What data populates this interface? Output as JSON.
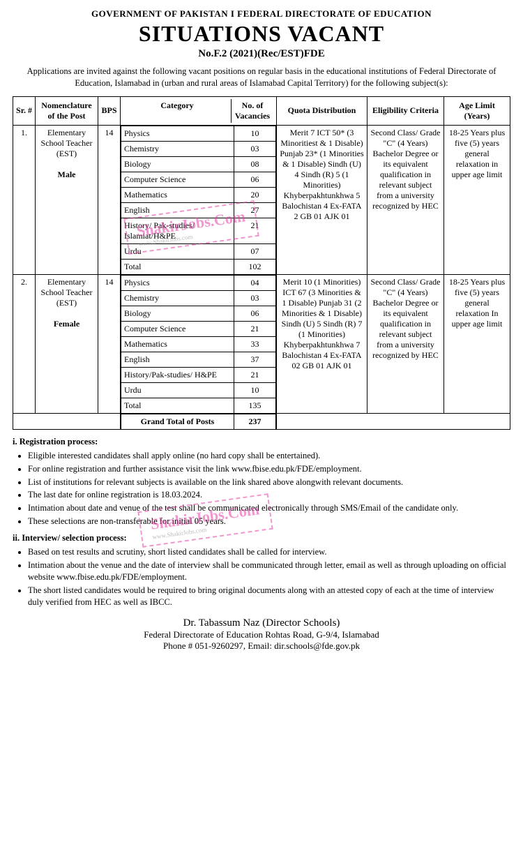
{
  "header": {
    "org": "GOVERNMENT OF PAKISTAN I FEDERAL DIRECTORATE OF EDUCATION",
    "title": "SITUATIONS VACANT",
    "ref": "No.F.2 (2021)(Rec/EST)FDE"
  },
  "intro": "Applications are invited against the following vacant positions on regular basis in the educational institutions of Federal Directorate of Education, Islamabad in (urban and rural areas of Islamabad Capital Territory) for the following subject(s):",
  "columns": [
    "Sr. #",
    "Nomenclature of the Post",
    "BPS",
    "Category",
    "No. of Vacancies",
    "Quota Distribution",
    "Eligibility Criteria",
    "Age Limit (Years)"
  ],
  "posts": [
    {
      "sr": "1.",
      "name": "Elementary School Teacher (EST)",
      "gender": "Male",
      "bps": "14",
      "rows": [
        {
          "cat": "Physics",
          "n": "10"
        },
        {
          "cat": "Chemistry",
          "n": "03"
        },
        {
          "cat": "Biology",
          "n": "08"
        },
        {
          "cat": "Computer Science",
          "n": "06"
        },
        {
          "cat": "Mathematics",
          "n": "20"
        },
        {
          "cat": "English",
          "n": "27"
        },
        {
          "cat": "History/ Pak-studies/ Islamiat/H&PE",
          "n": "21"
        },
        {
          "cat": "Urdu",
          "n": "07"
        },
        {
          "cat": "Total",
          "n": "102"
        }
      ],
      "quota": "Merit 7 ICT 50* (3 Minoritiest & 1 Disable) Punjab 23* (1 Minorities & 1 Disable) Sindh (U) 4 Sindh (R) 5 (1 Minorities) Khyberpakhtunkhwa 5 Balochistan 4 Ex-FATA 2 GB 01 AJK 01",
      "elig": "Second Class/ Grade \"C\" (4 Years) Bachelor Degree or its equivalent qualification in relevant subject from a university recognized by HEC",
      "age": "18-25 Years plus five (5) years general relaxation in upper age limit"
    },
    {
      "sr": "2.",
      "name": "Elementary School Teacher (EST)",
      "gender": "Female",
      "bps": "14",
      "rows": [
        {
          "cat": "Physics",
          "n": "04"
        },
        {
          "cat": "Chemistry",
          "n": "03"
        },
        {
          "cat": "Biology",
          "n": "06"
        },
        {
          "cat": "Computer Science",
          "n": "21"
        },
        {
          "cat": "Mathematics",
          "n": "33"
        },
        {
          "cat": "English",
          "n": "37"
        },
        {
          "cat": "History/Pak-studies/ H&PE",
          "n": "21"
        },
        {
          "cat": "Urdu",
          "n": "10"
        },
        {
          "cat": "Total",
          "n": "135"
        }
      ],
      "quota": "Merit 10 (1 Minorities) ICT 67 (3 Minorities & 1 Disable) Punjab 31 (2 Minorities & 1 Disable) Sindh (U) 5 Sindh (R) 7 (1 Minorities) Khyberpakhtunkhwa 7 Balochistan 4 Ex-FATA 02 GB 01 AJK 01",
      "elig": "Second Class/ Grade \"C\" (4 Years) Bachelor Degree or its equivalent qualification in relevant subject from a university recognized by HEC",
      "age": "18-25 Years plus five (5) years general relaxation In upper age limit"
    }
  ],
  "grand": {
    "label": "Grand Total of Posts",
    "value": "237"
  },
  "sec1": {
    "h": "i. Registration process:",
    "items": [
      "Eligible interested candidates shall apply online (no hard copy shall be entertained).",
      "For online registration and further assistance visit the link www.fbise.edu.pk/FDE/employment.",
      "List of institutions for relevant subjects is available on the link shared above alongwith relevant documents.",
      "The last date for online registration is 18.03.2024.",
      "Intimation about date and venue of the test shall be communicated electronically through SMS/Email of the candidate only.",
      "These selections are non-transferable for initial 05 years."
    ]
  },
  "sec2": {
    "h": "ii. Interview/ selection process:",
    "items": [
      "Based on test results and scrutiny, short listed candidates shall be called for interview.",
      "Intimation about the venue and the date of interview shall be communicated through letter, email as well as through uploading on official website www.fbise.edu.pk/FDE/employment.",
      "The short listed candidates would be required to bring original documents along with an attested copy of each at the time of interview duly verified from HEC as well as IBCC."
    ]
  },
  "footer": {
    "name": "Dr. Tabassum Naz  (Director Schools)",
    "addr": "Federal Directorate of Education Rohtas Road, G-9/4, Islamabad",
    "contact": "Phone # 051-9260297, Email: dir.schools@fde.gov.pk"
  },
  "watermark": {
    "big": "ShakirJobs.Com",
    "small": "www.ShakirJobs.com"
  }
}
